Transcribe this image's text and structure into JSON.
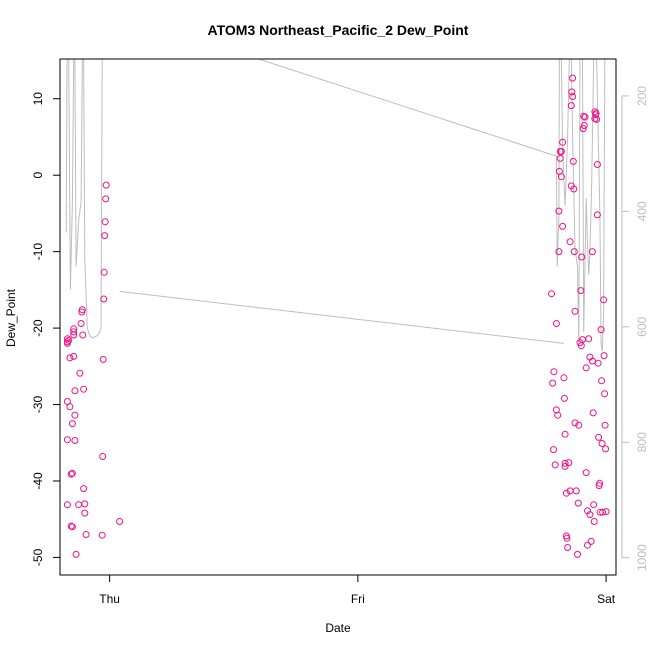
{
  "chart_data": {
    "type": "scatter",
    "title": "ATOM3 Northeast_Pacific_2 Dew_Point",
    "xlabel": "Date",
    "ylabel": "Dew_Point",
    "x_ticks": [
      "Thu",
      "Fri",
      "Sat"
    ],
    "x_range_days": [
      -0.2,
      2.04
    ],
    "ylim": [
      -52.3,
      15.2
    ],
    "y_ticks": [
      -50,
      -40,
      -30,
      -20,
      -10,
      0,
      10
    ],
    "y2_ticks": [
      200,
      400,
      600,
      800,
      1000
    ],
    "y2lim": [
      1030,
      136
    ],
    "point_color": "#ee1289",
    "line_color": "#bebebe",
    "grid": false,
    "legend": "none",
    "series": [
      {
        "type": "scatter",
        "points": [
          [
            -0.17,
            -21.4
          ],
          [
            -0.17,
            -21.8
          ],
          [
            -0.17,
            -22.0
          ],
          [
            -0.165,
            -21.6
          ],
          [
            -0.17,
            -29.6
          ],
          [
            -0.17,
            -34.6
          ],
          [
            -0.17,
            -43.1
          ],
          [
            -0.16,
            -23.9
          ],
          [
            -0.16,
            -30.3
          ],
          [
            -0.155,
            -39.1
          ],
          [
            -0.155,
            -45.9
          ],
          [
            -0.15,
            -32.5
          ],
          [
            -0.15,
            -39.0
          ],
          [
            -0.15,
            -46.0
          ],
          [
            -0.145,
            -20.1
          ],
          [
            -0.145,
            -20.5
          ],
          [
            -0.145,
            -20.9
          ],
          [
            -0.145,
            -23.7
          ],
          [
            -0.14,
            -28.2
          ],
          [
            -0.14,
            -31.4
          ],
          [
            -0.14,
            -34.7
          ],
          [
            -0.135,
            -49.6
          ],
          [
            -0.125,
            -43.1
          ],
          [
            -0.12,
            -25.9
          ],
          [
            -0.115,
            -19.4
          ],
          [
            -0.112,
            -17.9
          ],
          [
            -0.11,
            -17.6
          ],
          [
            -0.108,
            -20.9
          ],
          [
            -0.105,
            -28.0
          ],
          [
            -0.105,
            -41.0
          ],
          [
            -0.1,
            -43.0
          ],
          [
            -0.1,
            -44.2
          ],
          [
            -0.095,
            -47.0
          ],
          [
            -0.03,
            -47.1
          ],
          [
            -0.028,
            -36.8
          ],
          [
            -0.026,
            -24.1
          ],
          [
            -0.024,
            -16.2
          ],
          [
            -0.022,
            -12.7
          ],
          [
            -0.02,
            -7.9
          ],
          [
            -0.018,
            -6.1
          ],
          [
            -0.016,
            -3.1
          ],
          [
            -0.014,
            -1.3
          ],
          [
            0.04,
            -45.3
          ],
          [
            1.78,
            -15.5
          ],
          [
            1.785,
            -27.2
          ],
          [
            1.788,
            -35.9
          ],
          [
            1.79,
            -25.7
          ],
          [
            1.795,
            -37.9
          ],
          [
            1.8,
            -19.4
          ],
          [
            1.8,
            -30.7
          ],
          [
            1.805,
            -31.4
          ],
          [
            1.81,
            -4.7
          ],
          [
            1.81,
            -10.0
          ],
          [
            1.812,
            0.5
          ],
          [
            1.815,
            2.2
          ],
          [
            1.815,
            3.1
          ],
          [
            1.82,
            3.1
          ],
          [
            1.82,
            -0.2
          ],
          [
            1.825,
            4.3
          ],
          [
            1.825,
            -6.7
          ],
          [
            1.83,
            -26.5
          ],
          [
            1.832,
            -29.2
          ],
          [
            1.835,
            -33.9
          ],
          [
            1.835,
            -37.7
          ],
          [
            1.835,
            -38.1
          ],
          [
            1.84,
            -41.6
          ],
          [
            1.84,
            -47.2
          ],
          [
            1.842,
            -47.5
          ],
          [
            1.845,
            -48.7
          ],
          [
            1.85,
            -37.6
          ],
          [
            1.855,
            -41.3
          ],
          [
            1.855,
            -8.7
          ],
          [
            1.86,
            -1.4
          ],
          [
            1.86,
            9.1
          ],
          [
            1.862,
            10.9
          ],
          [
            1.865,
            12.7
          ],
          [
            1.865,
            10.3
          ],
          [
            1.868,
            1.8
          ],
          [
            1.87,
            -1.8
          ],
          [
            1.872,
            -10.0
          ],
          [
            1.875,
            -17.8
          ],
          [
            1.875,
            -32.4
          ],
          [
            1.88,
            -41.3
          ],
          [
            1.885,
            -49.6
          ],
          [
            1.888,
            -42.9
          ],
          [
            1.89,
            -32.7
          ],
          [
            1.895,
            -21.9
          ],
          [
            1.898,
            -15.1
          ],
          [
            1.9,
            -22.3
          ],
          [
            1.902,
            -10.7
          ],
          [
            1.905,
            -21.5
          ],
          [
            1.908,
            6.1
          ],
          [
            1.91,
            7.7
          ],
          [
            1.912,
            6.5
          ],
          [
            1.915,
            7.6
          ],
          [
            1.92,
            -25.2
          ],
          [
            1.92,
            -38.9
          ],
          [
            1.925,
            -43.9
          ],
          [
            1.925,
            -48.4
          ],
          [
            1.93,
            -21.4
          ],
          [
            1.935,
            -23.8
          ],
          [
            1.935,
            -44.4
          ],
          [
            1.94,
            -47.9
          ],
          [
            1.945,
            -10.0
          ],
          [
            1.945,
            -24.3
          ],
          [
            1.948,
            -31.1
          ],
          [
            1.95,
            -43.1
          ],
          [
            1.952,
            -45.3
          ],
          [
            1.955,
            7.4
          ],
          [
            1.955,
            8.3
          ],
          [
            1.958,
            7.9
          ],
          [
            1.96,
            8.1
          ],
          [
            1.962,
            7.3
          ],
          [
            1.965,
            1.4
          ],
          [
            1.965,
            -5.2
          ],
          [
            1.968,
            -24.6
          ],
          [
            1.97,
            -34.3
          ],
          [
            1.972,
            -40.6
          ],
          [
            1.974,
            -40.3
          ],
          [
            1.976,
            -44.1
          ],
          [
            1.98,
            -20.2
          ],
          [
            1.982,
            -26.9
          ],
          [
            1.984,
            -35.1
          ],
          [
            1.986,
            -44.1
          ],
          [
            1.99,
            -16.3
          ],
          [
            1.992,
            -23.6
          ],
          [
            1.994,
            -28.6
          ],
          [
            1.996,
            -32.7
          ],
          [
            1.998,
            -35.8
          ],
          [
            2.0,
            -44.0
          ]
        ]
      },
      {
        "type": "line",
        "points": [
          [
            -0.175,
            -7.5
          ],
          [
            -0.172,
            15.2
          ],
          [
            -0.165,
            15.2
          ],
          [
            -0.158,
            -15.0
          ],
          [
            -0.15,
            -3.5
          ],
          [
            -0.145,
            15.2
          ],
          [
            -0.14,
            15.2
          ],
          [
            -0.135,
            -12.0
          ],
          [
            -0.125,
            -6.0
          ],
          [
            -0.115,
            -3.5
          ],
          [
            -0.11,
            15.2
          ],
          [
            -0.105,
            15.2
          ],
          [
            -0.1,
            -11.0
          ],
          [
            -0.09,
            -20.0
          ],
          [
            -0.08,
            -21.0
          ],
          [
            -0.07,
            -21.3
          ],
          [
            -0.05,
            -21.0
          ],
          [
            -0.04,
            -20.5
          ],
          [
            -0.035,
            -20.0
          ],
          [
            -0.03,
            15.2
          ],
          [
            -0.025,
            15.2
          ],
          [
            0.6,
            15.2
          ],
          [
            1.8,
            2.5
          ],
          [
            1.803,
            -12.0
          ],
          [
            1.81,
            -5.5
          ],
          [
            1.812,
            15.2
          ],
          [
            1.82,
            15.2
          ],
          [
            1.825,
            3.5
          ],
          [
            1.835,
            -4.0
          ],
          [
            1.845,
            5.0
          ],
          [
            1.852,
            15.2
          ],
          [
            1.86,
            15.2
          ],
          [
            1.865,
            5.0
          ],
          [
            1.875,
            -9.5
          ],
          [
            1.885,
            -12.0
          ],
          [
            1.89,
            -22.0
          ],
          [
            1.895,
            15.2
          ],
          [
            1.905,
            15.2
          ],
          [
            1.91,
            -20.5
          ],
          [
            1.92,
            -3.0
          ],
          [
            1.925,
            -9.0
          ],
          [
            1.93,
            -13.0
          ],
          [
            1.935,
            -10.0
          ],
          [
            1.942,
            -1.0
          ],
          [
            1.95,
            15.2
          ],
          [
            1.962,
            15.2
          ],
          [
            1.975,
            -5.0
          ],
          [
            1.98,
            -22.0
          ],
          [
            1.985,
            -23.0
          ],
          [
            1.99,
            -18.0
          ],
          [
            1.995,
            15.2
          ]
        ]
      },
      {
        "type": "line",
        "points": [
          [
            0.04,
            -15.2
          ],
          [
            1.83,
            -22.0
          ]
        ]
      }
    ]
  }
}
